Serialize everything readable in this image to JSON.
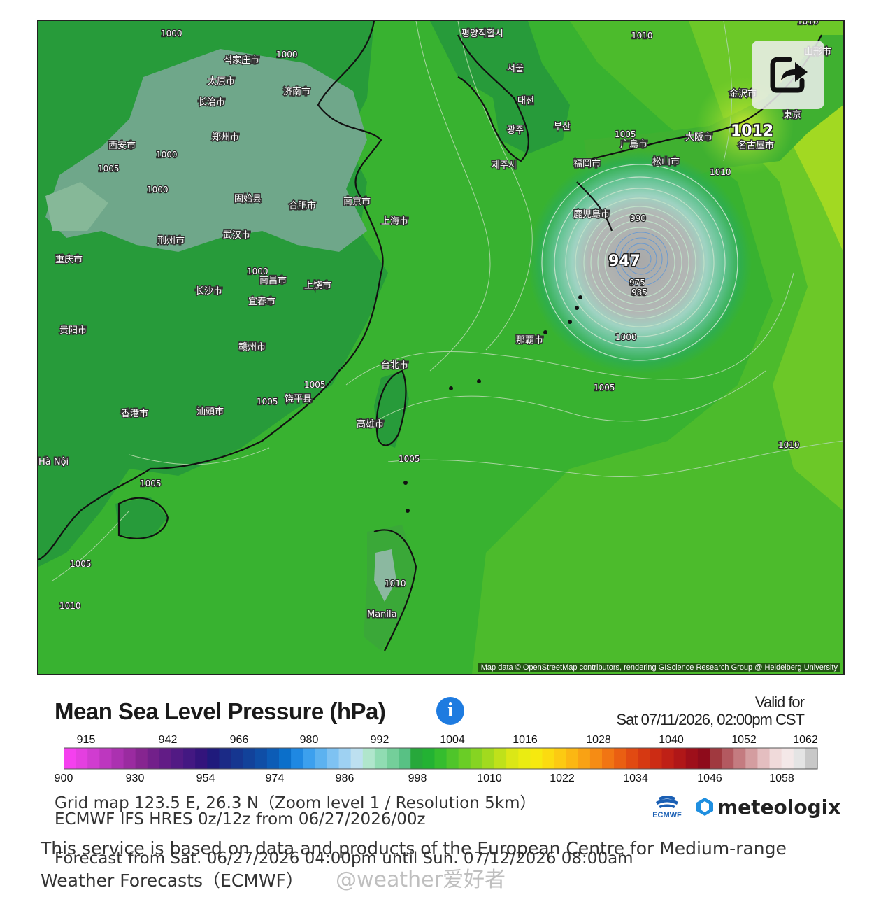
{
  "map": {
    "attribution": "Map data © OpenStreetMap contributors, rendering GIScience Research Group @ Heidelberg University",
    "typhoon_center": "947",
    "high_label": "1012",
    "cities": [
      "평양직할시",
      "서울",
      "대전",
      "광주",
      "부산",
      "제주시",
      "석家庄市",
      "太原市",
      "济南市",
      "长治市",
      "郑州市",
      "西安市",
      "固始县",
      "合肥市",
      "南京市",
      "上海市",
      "荆州市",
      "武汉市",
      "重庆市",
      "南昌市",
      "长沙市",
      "宜春市",
      "上饶市",
      "贵阳市",
      "赣州市",
      "台北市",
      "高雄市",
      "饶平县",
      "福岡市",
      "广島市",
      "大阪市",
      "松山市",
      "名古屋市",
      "東京",
      "金沢市",
      "山形市",
      "鹿児島市",
      "那覇市",
      "香港市",
      "汕頭市",
      "Hà Nội",
      "Manila"
    ],
    "isobars": [
      "1000",
      "1000",
      "1000",
      "1005",
      "1005",
      "1005",
      "1005",
      "1010",
      "1010",
      "1010",
      "1010",
      "1010",
      "990",
      "975",
      "985",
      "1000",
      "1005",
      "1005",
      "1005",
      "1000",
      "1000",
      "1010",
      "1005"
    ]
  },
  "legend": {
    "title": "Mean Sea Level Pressure (hPa)",
    "valid_label": "Valid for",
    "valid_time": "Sat 07/11/2026, 02:00pm CST",
    "top_ticks": [
      "915",
      "942",
      "966",
      "980",
      "992",
      "1004",
      "1016",
      "1028",
      "1040",
      "1052",
      "1062"
    ],
    "bottom_ticks": [
      "900",
      "930",
      "954",
      "974",
      "986",
      "998",
      "1010",
      "1022",
      "1034",
      "1046",
      "1058"
    ],
    "colors": [
      "#f540ef",
      "#e43fe0",
      "#d03cd0",
      "#bd37bf",
      "#ab31b0",
      "#9a2ba0",
      "#862590",
      "#72208a",
      "#621c86",
      "#521a84",
      "#431882",
      "#33147c",
      "#1f1a7c",
      "#1b2a86",
      "#163690",
      "#12429a",
      "#0f4ea6",
      "#0c5cb6",
      "#0b6fca",
      "#1f88e2",
      "#3ca0ee",
      "#5cb2f0",
      "#7ec2f2",
      "#9ed1f2",
      "#bde0f0",
      "#b0e6cc",
      "#90dcb2",
      "#74cf9a",
      "#58c184",
      "#27a83b",
      "#23b233",
      "#35bd2e",
      "#4fc52a",
      "#6acd26",
      "#86d422",
      "#a2da1e",
      "#bfe11a",
      "#dbe716",
      "#eaec12",
      "#f6e90f",
      "#fbdb10",
      "#fcca12",
      "#fbb713",
      "#f9a214",
      "#f68c14",
      "#f17513",
      "#ea5f12",
      "#e14a12",
      "#d63912",
      "#cc2c14",
      "#bf2016",
      "#b01718",
      "#9e0f1a",
      "#8e0b1b",
      "#a0393f",
      "#b35960",
      "#c47b80",
      "#d49da0",
      "#e4bec0",
      "#f0dada",
      "#f4e8e8",
      "#e4e4e4",
      "#c8c8c8"
    ]
  },
  "info": {
    "grid_line": "Grid map 123.5 E, 26.3 N（Zoom level 1 / Resolution 5km）",
    "model_line": "ECMWF IFS HRES 0z/12z from 06/27/2026/00z",
    "service_note": "This service is based on data and products of the European Centre for Medium-range Weather Forecasts（ECMWF）",
    "forecast_line": "Forecast from Sat. 06/27/2026 04:00pm until Sun. 07/12/2026 08:00am",
    "ecmwf_label": "ECMWF",
    "meteologix_label": "meteologix",
    "watermark": "@weather爱好者"
  }
}
